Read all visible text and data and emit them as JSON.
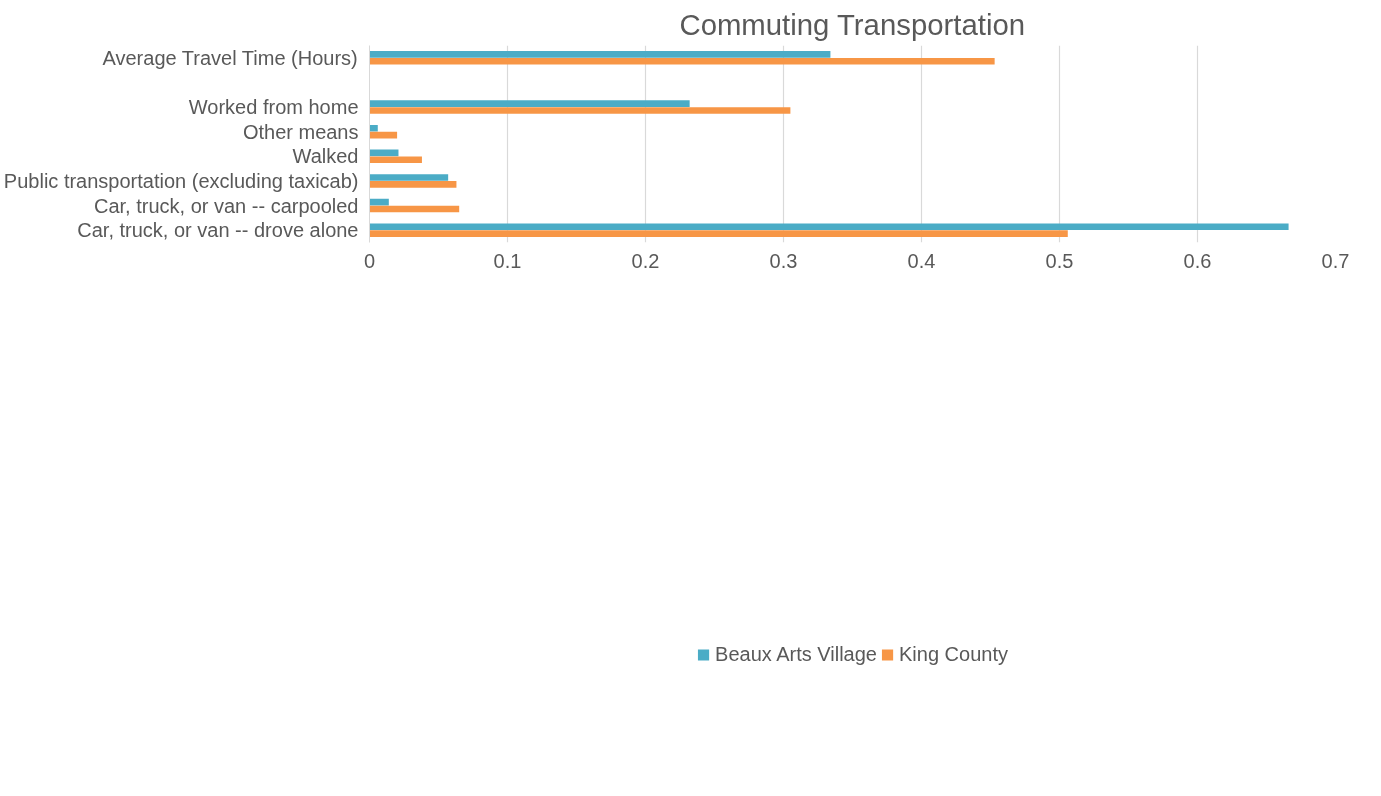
{
  "chart_data": {
    "type": "bar",
    "orientation": "horizontal",
    "title": "Commuting Transportation",
    "categories": [
      "Average Travel Time (Hours)",
      null,
      "Worked from home",
      "Other means",
      "Walked",
      "Public transportation (excluding taxicab)",
      "Car, truck, or van -- carpooled",
      "Car, truck, or van -- drove alone"
    ],
    "series": [
      {
        "name": "Beaux Arts Village",
        "color": "#4bacc6",
        "values": [
          0.334,
          null,
          0.232,
          0.006,
          0.021,
          0.057,
          0.014,
          0.666
        ]
      },
      {
        "name": "King County",
        "color": "#f79646",
        "values": [
          0.453,
          null,
          0.305,
          0.02,
          0.038,
          0.063,
          0.065,
          0.506
        ]
      }
    ],
    "xlim": [
      0,
      0.7
    ],
    "xticks": [
      0,
      0.1,
      0.2,
      0.3,
      0.4,
      0.5,
      0.6,
      0.7
    ],
    "grid": "x",
    "legend": "bottom"
  }
}
